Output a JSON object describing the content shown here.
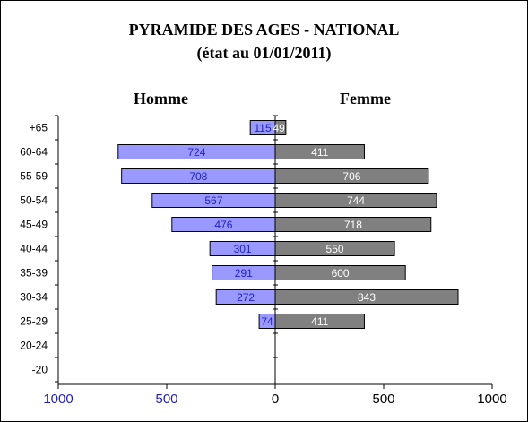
{
  "chart_data": {
    "type": "bar",
    "title": "PYRAMIDE DES AGES - NATIONAL",
    "subtitle": "(état au 01/01/2011)",
    "left_label": "Homme",
    "right_label": "Femme",
    "categories": [
      "+65",
      "60-64",
      "55-59",
      "50-54",
      "45-49",
      "40-44",
      "35-39",
      "30-34",
      "25-29",
      "20-24",
      "-20"
    ],
    "series": [
      {
        "name": "Homme",
        "color": "#9999ff",
        "label_color": "#1f1fbf",
        "values": [
          115,
          724,
          708,
          567,
          476,
          301,
          291,
          272,
          74,
          null,
          null
        ]
      },
      {
        "name": "Femme",
        "color": "#808080",
        "label_color": "#ffffff",
        "values": [
          49,
          411,
          706,
          744,
          718,
          550,
          600,
          843,
          411,
          null,
          null
        ]
      }
    ],
    "x_ticks": [
      {
        "value": -1000,
        "label": "1000",
        "color": "#1f1fbf"
      },
      {
        "value": -500,
        "label": "500",
        "color": "#1f1fbf"
      },
      {
        "value": 0,
        "label": "0",
        "color": "#000000"
      },
      {
        "value": 500,
        "label": "500",
        "color": "#000000"
      },
      {
        "value": 1000,
        "label": "1000",
        "color": "#000000"
      }
    ],
    "xlim": [
      -1000,
      1000
    ],
    "grid": false,
    "legend": "none"
  }
}
